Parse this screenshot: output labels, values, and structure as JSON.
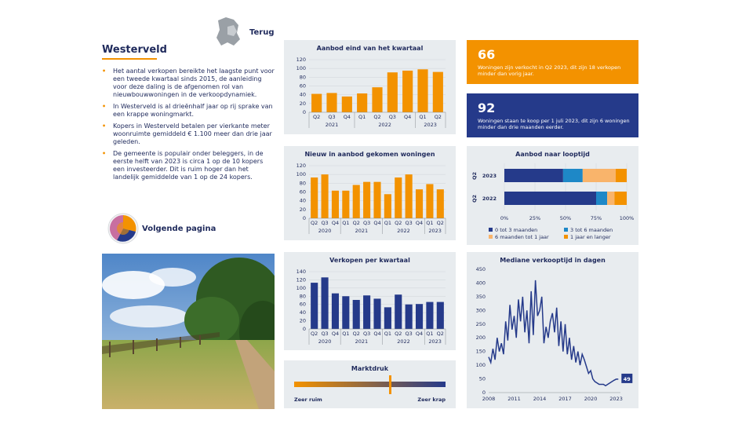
{
  "header": {
    "back_label": "Terug",
    "title": "Westerveld"
  },
  "bullets": [
    "Het aantal verkopen bereikte het laagste punt voor een tweede kwartaal sinds 2015, de aanleiding voor deze daling is de afgenomen rol van nieuwbouwwoningen in de verkoopdynamiek.",
    "In Westerveld is al drieënhalf jaar op rij sprake van een krappe woningmarkt.",
    "Kopers in Westerveld betalen per vierkante meter woonruimte gemiddeld € 1.100 meer dan drie jaar geleden.",
    "De gemeente is populair onder beleggers, in de eerste helft van 2023 is circa 1 op de 10 kopers een investeerder. Dit is ruim hoger dan het landelijk gemiddelde van 1 op de 24 kopers."
  ],
  "next_label": "Volgende pagina",
  "stats": [
    {
      "value": "66",
      "text": "Woningen zijn verkocht in Q2 2023, dit zijn 18 verkopen minder dan vorig jaar.",
      "color": "#f39200"
    },
    {
      "value": "92",
      "text": "Woningen staan te koop per 1 juli 2023, dit zijn 6 woningen minder dan drie maanden eerder.",
      "color": "#253a8a"
    }
  ],
  "colors": {
    "orange": "#f39200",
    "navy": "#253a8a",
    "lightblue": "#1e88c7",
    "peach": "#f9b46b",
    "panel": "#e8ecef"
  },
  "chart_data": [
    {
      "type": "bar",
      "title": "Aanbod eind van het kwartaal",
      "categories": [
        "Q2",
        "Q3",
        "Q4",
        "Q1",
        "Q2",
        "Q3",
        "Q4",
        "Q1",
        "Q2"
      ],
      "groups": [
        {
          "label": "2021",
          "count": 3
        },
        {
          "label": "2022",
          "count": 4
        },
        {
          "label": "2023",
          "count": 2
        }
      ],
      "values": [
        42,
        44,
        36,
        43,
        57,
        91,
        95,
        98,
        92
      ],
      "ylim": [
        0,
        120
      ],
      "yticks": [
        0,
        20,
        40,
        60,
        80,
        100,
        120
      ],
      "color": "#f39200"
    },
    {
      "type": "bar",
      "title": "Nieuw in aanbod gekomen woningen",
      "categories": [
        "Q2",
        "Q3",
        "Q4",
        "Q1",
        "Q2",
        "Q3",
        "Q4",
        "Q1",
        "Q2",
        "Q3",
        "Q4",
        "Q1",
        "Q2"
      ],
      "groups": [
        {
          "label": "2020",
          "count": 3
        },
        {
          "label": "2021",
          "count": 4
        },
        {
          "label": "2022",
          "count": 4
        },
        {
          "label": "2023",
          "count": 2
        }
      ],
      "values": [
        93,
        100,
        63,
        63,
        76,
        83,
        83,
        55,
        93,
        100,
        66,
        78,
        66
      ],
      "ylim": [
        0,
        120
      ],
      "yticks": [
        0,
        20,
        40,
        60,
        80,
        100,
        120
      ],
      "color": "#f39200"
    },
    {
      "type": "bar",
      "title": "Verkopen per kwartaal",
      "categories": [
        "Q2",
        "Q3",
        "Q4",
        "Q1",
        "Q2",
        "Q3",
        "Q4",
        "Q1",
        "Q2",
        "Q3",
        "Q4",
        "Q1",
        "Q2"
      ],
      "groups": [
        {
          "label": "2020",
          "count": 3
        },
        {
          "label": "2021",
          "count": 4
        },
        {
          "label": "2022",
          "count": 4
        },
        {
          "label": "2023",
          "count": 2
        }
      ],
      "values": [
        113,
        126,
        87,
        80,
        71,
        82,
        74,
        53,
        84,
        60,
        61,
        66,
        66
      ],
      "ylim": [
        0,
        140
      ],
      "yticks": [
        0,
        20,
        40,
        60,
        80,
        100,
        120,
        140
      ],
      "color": "#253a8a"
    },
    {
      "type": "bar",
      "stacked": true,
      "orientation": "horizontal",
      "title": "Aanbod naar looptijd",
      "categories": [
        "2023",
        "2022"
      ],
      "category_prefix": "Q2",
      "xticks": [
        "0%",
        "25%",
        "50%",
        "75%",
        "100%"
      ],
      "series": [
        {
          "name": "0 tot 3 maanden",
          "values": [
            48,
            75
          ],
          "color": "#253a8a"
        },
        {
          "name": "3 tot 6 maanden",
          "values": [
            16,
            9
          ],
          "color": "#1e88c7"
        },
        {
          "name": "6 maanden tot 1 jaar",
          "values": [
            27,
            6
          ],
          "color": "#f9b46b"
        },
        {
          "name": "1 jaar en langer",
          "values": [
            9,
            10
          ],
          "color": "#f39200"
        }
      ]
    },
    {
      "type": "line",
      "title": "Mediane verkooptijd in dagen",
      "x": [
        2008.0,
        2008.25,
        2008.5,
        2008.75,
        2009.0,
        2009.25,
        2009.5,
        2009.75,
        2010.0,
        2010.25,
        2010.5,
        2010.75,
        2011.0,
        2011.25,
        2011.5,
        2011.75,
        2012.0,
        2012.25,
        2012.5,
        2012.75,
        2013.0,
        2013.25,
        2013.5,
        2013.75,
        2014.0,
        2014.25,
        2014.5,
        2014.75,
        2015.0,
        2015.25,
        2015.5,
        2015.75,
        2016.0,
        2016.25,
        2016.5,
        2016.75,
        2017.0,
        2017.25,
        2017.5,
        2017.75,
        2018.0,
        2018.25,
        2018.5,
        2018.75,
        2019.0,
        2019.25,
        2019.5,
        2019.75,
        2020.0,
        2020.25,
        2020.5,
        2020.75,
        2021.0,
        2021.25,
        2021.5,
        2021.75,
        2022.0,
        2022.25,
        2022.5,
        2022.75,
        2023.0,
        2023.25
      ],
      "y": [
        130,
        110,
        160,
        120,
        200,
        150,
        180,
        140,
        260,
        190,
        320,
        230,
        280,
        200,
        340,
        260,
        350,
        220,
        300,
        180,
        370,
        210,
        410,
        280,
        300,
        350,
        180,
        240,
        200,
        260,
        290,
        220,
        310,
        170,
        260,
        150,
        250,
        140,
        200,
        120,
        170,
        110,
        150,
        100,
        140,
        120,
        95,
        70,
        80,
        50,
        40,
        35,
        30,
        30,
        30,
        25,
        30,
        35,
        40,
        45,
        49,
        49
      ],
      "ylim": [
        0,
        450
      ],
      "yticks": [
        0,
        50,
        100,
        150,
        200,
        250,
        300,
        350,
        400,
        450
      ],
      "xticks": [
        2008,
        2011,
        2014,
        2017,
        2020,
        2023
      ],
      "end_label": "49",
      "color": "#253a8a"
    }
  ],
  "marktdruk": {
    "title": "Marktdruk",
    "left_label": "Zeer ruim",
    "right_label": "Zeer krap",
    "marker_position": 0.63
  }
}
